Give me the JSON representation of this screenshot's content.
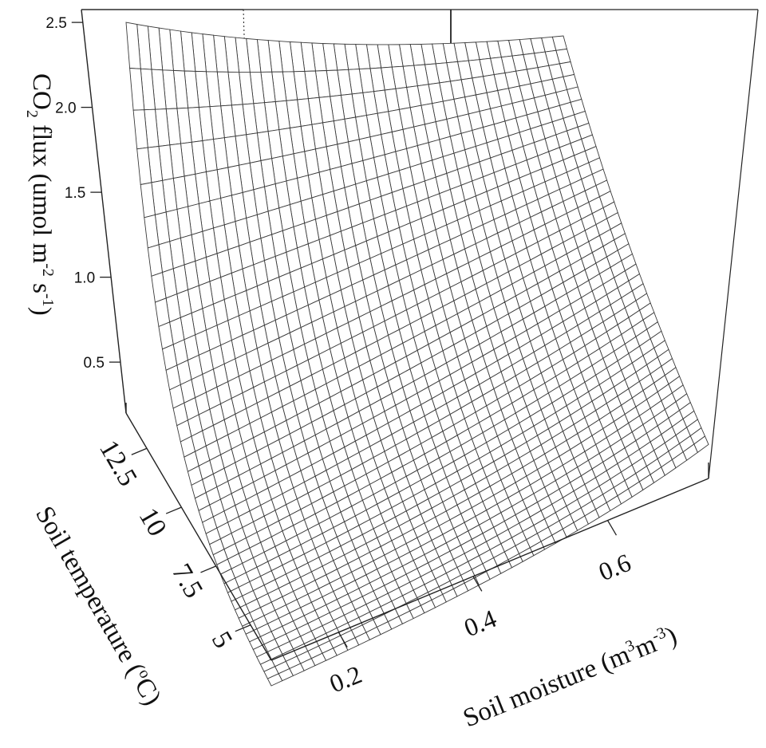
{
  "chart_data": {
    "type": "surface",
    "zlabel": {
      "pre": "CO",
      "sub1": "2",
      "mid": " flux (umol m",
      "sup1": "-2",
      "mid2": " s",
      "sup2": "-1",
      "post": ")"
    },
    "xlabel": {
      "pre": "Soil moisture  (m",
      "sup1": "3",
      "mid": "m",
      "sup2": "-3",
      "post": ")"
    },
    "ylabel": {
      "pre": "Soil temperature (",
      "sup": "o",
      "post": "C)"
    },
    "z_ticks": [
      "0.5",
      "1.0",
      "1.5",
      "2.0",
      "2.5"
    ],
    "moisture_ticks": [
      "0.2",
      "0.4",
      "0.6"
    ],
    "temperature_ticks": [
      "5",
      "7.5",
      "10",
      "12.5"
    ],
    "moisture_range": [
      0.1,
      0.75
    ],
    "temperature_range": [
      3.5,
      14
    ],
    "z_range": [
      0.2,
      2.5
    ],
    "grid_size": [
      40,
      40
    ],
    "surface_corners": {
      "low_moisture_high_temperature": 2.5,
      "high_moisture_high_temperature": 1.35,
      "low_moisture_low_temperature": 0.05,
      "high_moisture_low_temperature": 0.4
    }
  }
}
